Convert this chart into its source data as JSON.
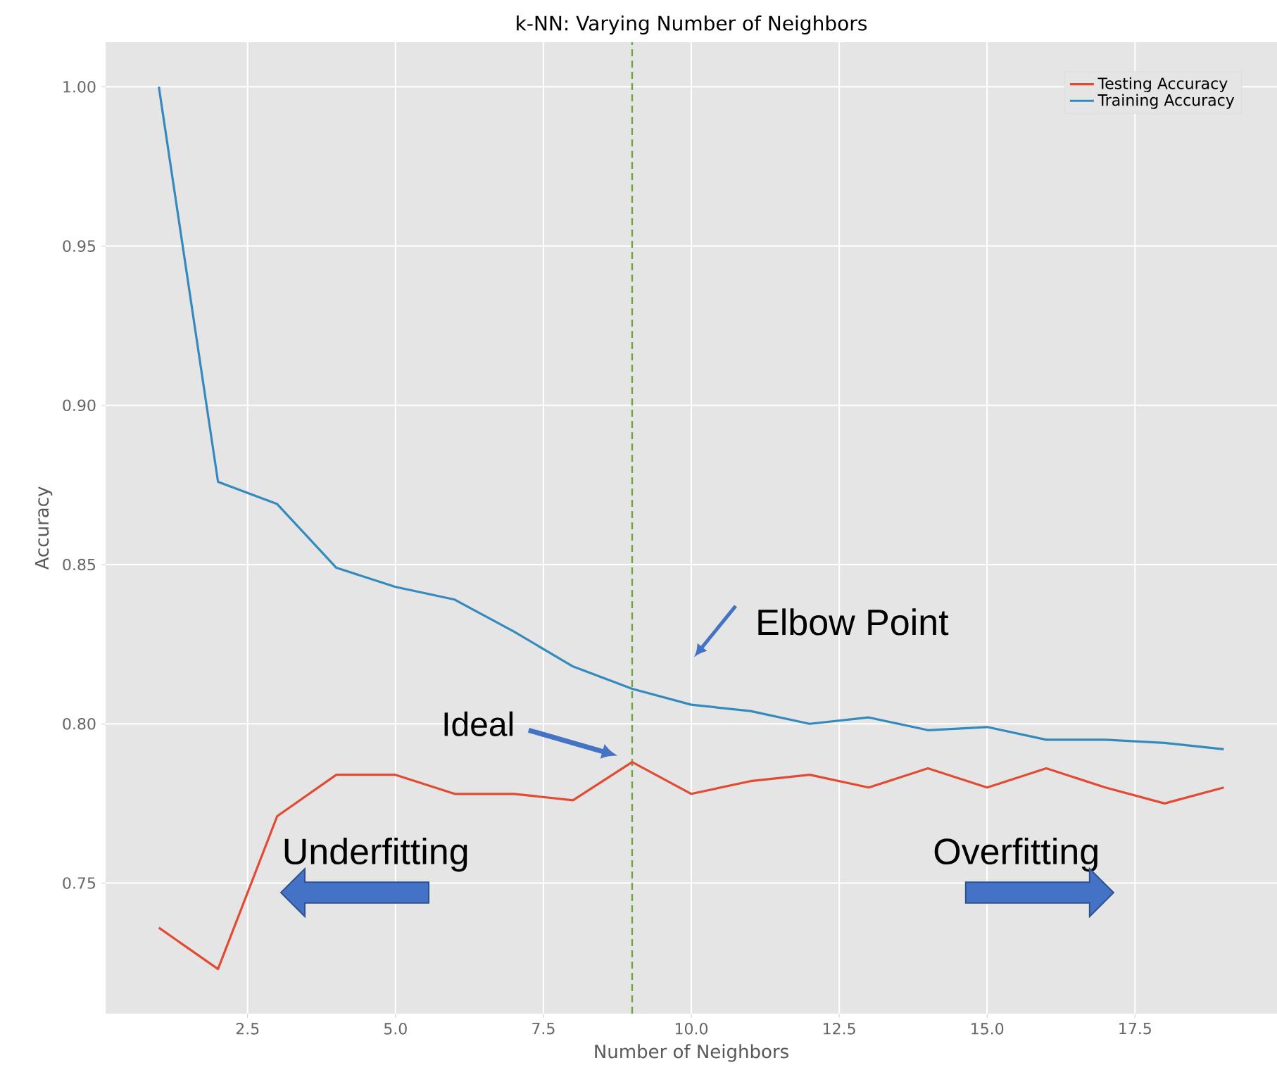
{
  "chart_data": {
    "type": "line",
    "title": "k-NN: Varying Number of Neighbors",
    "xlabel": "Number of Neighbors",
    "ylabel": "Accuracy",
    "x": [
      1,
      2,
      3,
      4,
      5,
      6,
      7,
      8,
      9,
      10,
      11,
      12,
      13,
      14,
      15,
      16,
      17,
      18,
      19
    ],
    "series": [
      {
        "name": "Testing Accuracy",
        "color": "#e24a33",
        "values": [
          0.736,
          0.723,
          0.771,
          0.784,
          0.784,
          0.778,
          0.778,
          0.776,
          0.788,
          0.778,
          0.782,
          0.784,
          0.78,
          0.786,
          0.78,
          0.786,
          0.78,
          0.775,
          0.78
        ]
      },
      {
        "name": "Training Accuracy",
        "color": "#348abd",
        "values": [
          1.0,
          0.876,
          0.869,
          0.849,
          0.843,
          0.839,
          0.829,
          0.818,
          0.811,
          0.806,
          0.804,
          0.8,
          0.802,
          0.798,
          0.799,
          0.795,
          0.795,
          0.794,
          0.792
        ]
      }
    ],
    "xlim": [
      0.1,
      19.9
    ],
    "ylim": [
      0.709,
      1.014
    ],
    "xticks": [
      {
        "value": 2.5,
        "label": "2.5"
      },
      {
        "value": 5,
        "label": "5.0"
      },
      {
        "value": 7.5,
        "label": "7.5"
      },
      {
        "value": 10,
        "label": "10.0"
      },
      {
        "value": 12.5,
        "label": "12.5"
      },
      {
        "value": 15,
        "label": "15.0"
      },
      {
        "value": 17.5,
        "label": "17.5"
      }
    ],
    "yticks": [
      {
        "value": 0.75,
        "label": "0.75"
      },
      {
        "value": 0.8,
        "label": "0.80"
      },
      {
        "value": 0.85,
        "label": "0.85"
      },
      {
        "value": 0.9,
        "label": "0.90"
      },
      {
        "value": 0.95,
        "label": "0.95"
      },
      {
        "value": 1.0,
        "label": "1.00"
      }
    ],
    "ref_lines": [
      {
        "axis": "x",
        "value": 9,
        "color": "#6aaa3a",
        "line_style": "dashed"
      }
    ],
    "annotations": [
      "Elbow Point",
      "Ideal",
      "Underfitting",
      "Overfitting"
    ],
    "grid": true,
    "legend": "top right",
    "line_style": "solid",
    "marker": "none"
  }
}
